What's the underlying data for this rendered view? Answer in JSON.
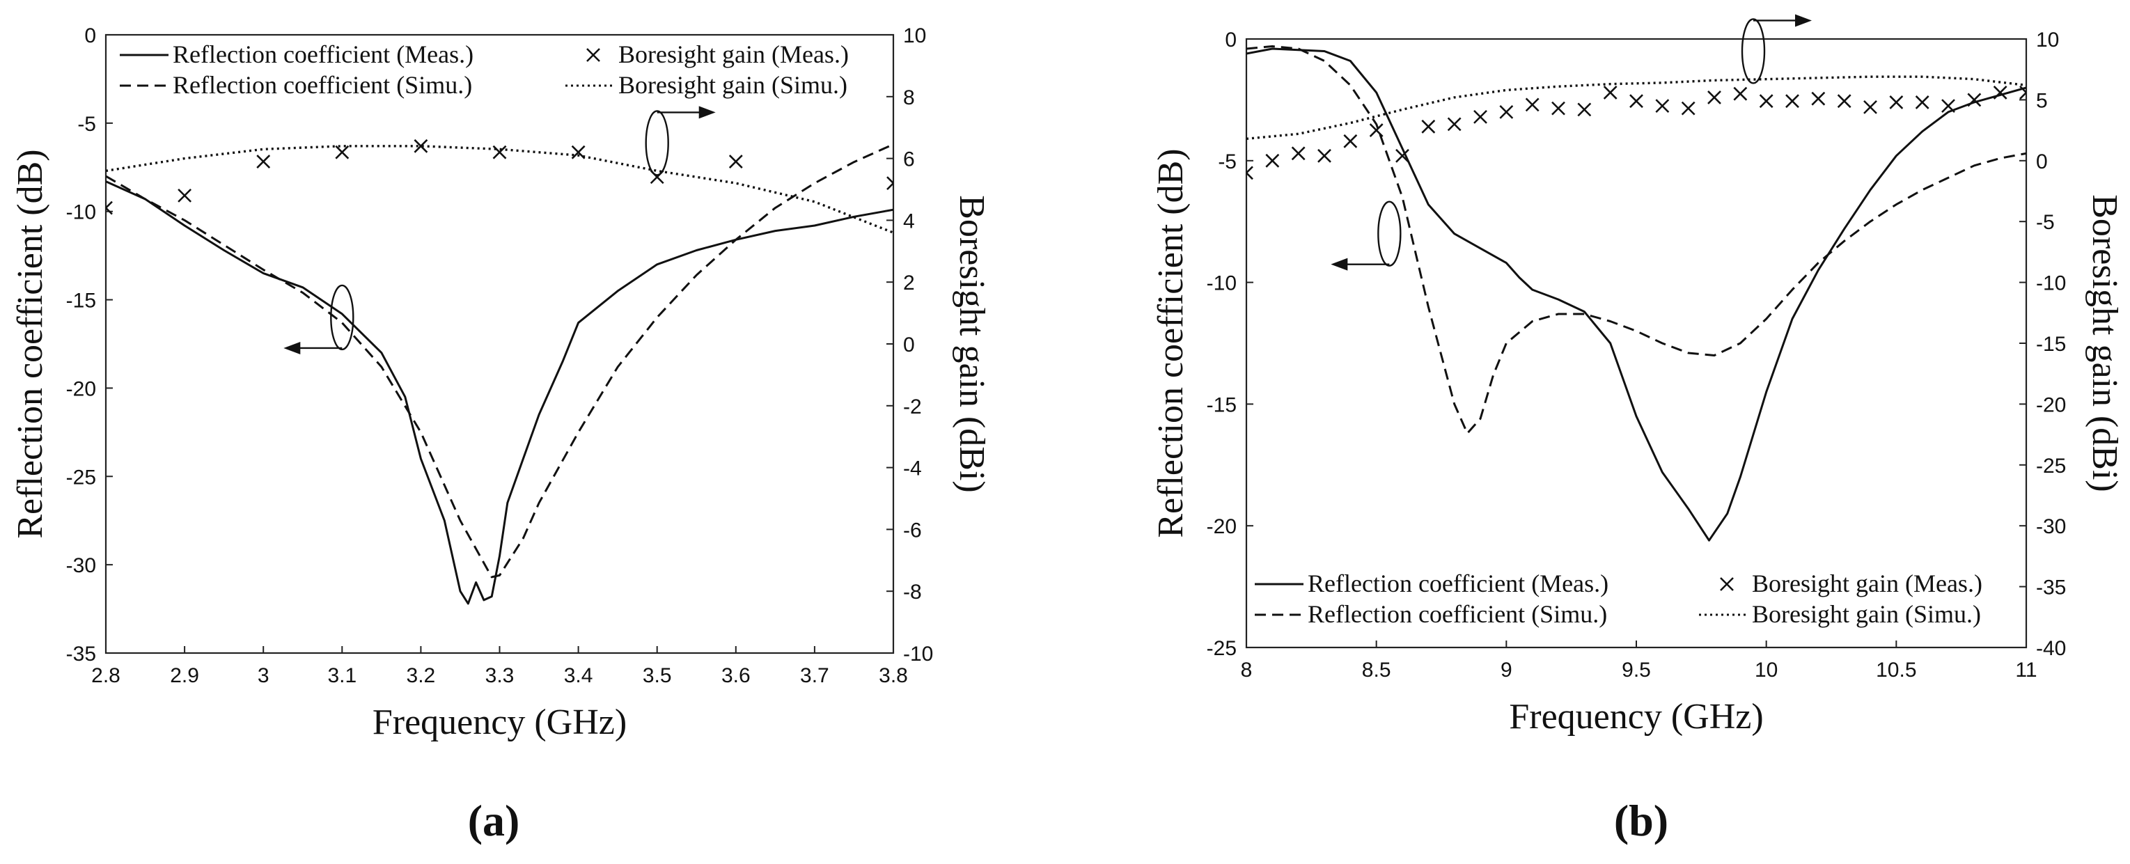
{
  "panel_labels": [
    "(a)",
    "(b)"
  ],
  "chart_data": [
    {
      "type": "line",
      "panel": "(a)",
      "xlabel": "Frequency (GHz)",
      "ylabel": "Reflection coefficient (dB)",
      "y2label": "Boresight gain (dBi)",
      "xlim": [
        2.8,
        3.8
      ],
      "ylim": [
        -35,
        0
      ],
      "y2lim": [
        -10,
        10
      ],
      "xticks": [
        "2.8",
        "2.9",
        "3",
        "3.1",
        "3.2",
        "3.3",
        "3.4",
        "3.5",
        "3.6",
        "3.7",
        "3.8"
      ],
      "yticks": [
        "0",
        "-5",
        "-10",
        "-15",
        "-20",
        "-25",
        "-30",
        "-35"
      ],
      "y2ticks": [
        "10",
        "8",
        "6",
        "4",
        "2",
        "0",
        "-2",
        "-4",
        "-6",
        "-8",
        "-10"
      ],
      "legend_position": "top",
      "series": [
        {
          "name": "Reflection coefficient (Meas.)",
          "axis": "left",
          "style": "solid",
          "points": [
            [
              2.8,
              -8.3
            ],
            [
              2.85,
              -9.3
            ],
            [
              2.9,
              -10.8
            ],
            [
              2.95,
              -12.2
            ],
            [
              3.0,
              -13.5
            ],
            [
              3.05,
              -14.3
            ],
            [
              3.1,
              -15.8
            ],
            [
              3.15,
              -18.0
            ],
            [
              3.18,
              -20.5
            ],
            [
              3.2,
              -24.0
            ],
            [
              3.23,
              -27.5
            ],
            [
              3.25,
              -31.5
            ],
            [
              3.26,
              -32.2
            ],
            [
              3.27,
              -31.0
            ],
            [
              3.28,
              -32.0
            ],
            [
              3.29,
              -31.8
            ],
            [
              3.3,
              -29.5
            ],
            [
              3.31,
              -26.5
            ],
            [
              3.33,
              -24.0
            ],
            [
              3.35,
              -21.5
            ],
            [
              3.38,
              -18.5
            ],
            [
              3.4,
              -16.3
            ],
            [
              3.45,
              -14.5
            ],
            [
              3.5,
              -13.0
            ],
            [
              3.55,
              -12.2
            ],
            [
              3.6,
              -11.6
            ],
            [
              3.65,
              -11.1
            ],
            [
              3.7,
              -10.8
            ],
            [
              3.75,
              -10.3
            ],
            [
              3.8,
              -9.9
            ]
          ]
        },
        {
          "name": "Reflection coefficient (Simu.)",
          "axis": "left",
          "style": "dashed",
          "points": [
            [
              2.8,
              -8.0
            ],
            [
              2.85,
              -9.3
            ],
            [
              2.9,
              -10.5
            ],
            [
              2.95,
              -11.9
            ],
            [
              3.0,
              -13.3
            ],
            [
              3.05,
              -14.6
            ],
            [
              3.1,
              -16.3
            ],
            [
              3.15,
              -18.8
            ],
            [
              3.2,
              -22.5
            ],
            [
              3.25,
              -27.5
            ],
            [
              3.29,
              -30.7
            ],
            [
              3.3,
              -30.6
            ],
            [
              3.33,
              -28.5
            ],
            [
              3.35,
              -26.5
            ],
            [
              3.4,
              -22.5
            ],
            [
              3.45,
              -18.8
            ],
            [
              3.5,
              -16.0
            ],
            [
              3.55,
              -13.6
            ],
            [
              3.6,
              -11.6
            ],
            [
              3.65,
              -9.8
            ],
            [
              3.7,
              -8.4
            ],
            [
              3.75,
              -7.2
            ],
            [
              3.8,
              -6.2
            ]
          ]
        },
        {
          "name": "Boresight gain (Meas.)",
          "axis": "right",
          "style": "markers-x",
          "points": [
            [
              2.8,
              4.4
            ],
            [
              2.9,
              4.8
            ],
            [
              3.0,
              5.9
            ],
            [
              3.1,
              6.2
            ],
            [
              3.2,
              6.4
            ],
            [
              3.3,
              6.2
            ],
            [
              3.4,
              6.2
            ],
            [
              3.5,
              5.4
            ],
            [
              3.6,
              5.9
            ],
            [
              3.8,
              5.2
            ]
          ]
        },
        {
          "name": "Boresight gain (Simu.)",
          "axis": "right",
          "style": "dotted",
          "points": [
            [
              2.8,
              5.6
            ],
            [
              2.9,
              6.0
            ],
            [
              3.0,
              6.3
            ],
            [
              3.1,
              6.4
            ],
            [
              3.2,
              6.4
            ],
            [
              3.3,
              6.3
            ],
            [
              3.4,
              6.1
            ],
            [
              3.5,
              5.6
            ],
            [
              3.6,
              5.2
            ],
            [
              3.7,
              4.6
            ],
            [
              3.8,
              3.6
            ]
          ]
        }
      ],
      "annotations": [
        {
          "text": "left-arrow",
          "points_to": "Reflection coefficient",
          "at": [
            3.1,
            -16
          ]
        },
        {
          "text": "right-arrow",
          "points_to": "Boresight gain",
          "at": [
            3.5,
            6.5
          ]
        }
      ]
    },
    {
      "type": "line",
      "panel": "(b)",
      "xlabel": "Frequency (GHz)",
      "ylabel": "Reflection coefficient (dB)",
      "y2label": "Boresight gain (dBi)",
      "xlim": [
        8,
        11
      ],
      "ylim": [
        -25,
        0
      ],
      "y2lim": [
        -40,
        10
      ],
      "xticks": [
        "8",
        "8.5",
        "9",
        "9.5",
        "10",
        "10.5",
        "11"
      ],
      "yticks": [
        "0",
        "-5",
        "-10",
        "-15",
        "-20",
        "-25"
      ],
      "y2ticks": [
        "10",
        "5",
        "0",
        "-5",
        "-10",
        "-15",
        "-20",
        "-25",
        "-30",
        "-35",
        "-40"
      ],
      "legend_position": "bottom",
      "series": [
        {
          "name": "Reflection coefficient (Meas.)",
          "axis": "left",
          "style": "solid",
          "points": [
            [
              8.0,
              -0.6
            ],
            [
              8.1,
              -0.4
            ],
            [
              8.2,
              -0.45
            ],
            [
              8.3,
              -0.5
            ],
            [
              8.4,
              -0.9
            ],
            [
              8.5,
              -2.2
            ],
            [
              8.6,
              -4.5
            ],
            [
              8.7,
              -6.8
            ],
            [
              8.8,
              -8.0
            ],
            [
              8.9,
              -8.6
            ],
            [
              9.0,
              -9.2
            ],
            [
              9.05,
              -9.8
            ],
            [
              9.1,
              -10.3
            ],
            [
              9.2,
              -10.7
            ],
            [
              9.3,
              -11.2
            ],
            [
              9.4,
              -12.5
            ],
            [
              9.5,
              -15.5
            ],
            [
              9.6,
              -17.8
            ],
            [
              9.7,
              -19.3
            ],
            [
              9.78,
              -20.6
            ],
            [
              9.85,
              -19.5
            ],
            [
              9.9,
              -18.0
            ],
            [
              10.0,
              -14.5
            ],
            [
              10.1,
              -11.5
            ],
            [
              10.2,
              -9.5
            ],
            [
              10.3,
              -7.8
            ],
            [
              10.4,
              -6.2
            ],
            [
              10.5,
              -4.8
            ],
            [
              10.6,
              -3.8
            ],
            [
              10.7,
              -3.0
            ],
            [
              10.8,
              -2.6
            ],
            [
              10.9,
              -2.3
            ],
            [
              11.0,
              -2.0
            ]
          ]
        },
        {
          "name": "Reflection coefficient (Simu.)",
          "axis": "left",
          "style": "dashed",
          "points": [
            [
              8.0,
              -0.4
            ],
            [
              8.1,
              -0.3
            ],
            [
              8.2,
              -0.4
            ],
            [
              8.3,
              -0.9
            ],
            [
              8.4,
              -1.9
            ],
            [
              8.5,
              -3.5
            ],
            [
              8.6,
              -6.5
            ],
            [
              8.7,
              -11.0
            ],
            [
              8.8,
              -15.0
            ],
            [
              8.85,
              -16.2
            ],
            [
              8.9,
              -15.6
            ],
            [
              8.95,
              -13.8
            ],
            [
              9.0,
              -12.5
            ],
            [
              9.1,
              -11.6
            ],
            [
              9.2,
              -11.3
            ],
            [
              9.3,
              -11.3
            ],
            [
              9.4,
              -11.6
            ],
            [
              9.5,
              -12.0
            ],
            [
              9.6,
              -12.5
            ],
            [
              9.7,
              -12.9
            ],
            [
              9.8,
              -13.0
            ],
            [
              9.9,
              -12.5
            ],
            [
              10.0,
              -11.5
            ],
            [
              10.1,
              -10.3
            ],
            [
              10.2,
              -9.2
            ],
            [
              10.3,
              -8.3
            ],
            [
              10.4,
              -7.5
            ],
            [
              10.5,
              -6.8
            ],
            [
              10.6,
              -6.2
            ],
            [
              10.7,
              -5.7
            ],
            [
              10.8,
              -5.2
            ],
            [
              10.9,
              -4.9
            ],
            [
              11.0,
              -4.7
            ]
          ]
        },
        {
          "name": "Boresight gain (Meas.)",
          "axis": "right",
          "style": "markers-x",
          "points": [
            [
              8.0,
              -1.0
            ],
            [
              8.1,
              0.0
            ],
            [
              8.2,
              0.6
            ],
            [
              8.3,
              0.4
            ],
            [
              8.4,
              1.6
            ],
            [
              8.5,
              2.5
            ],
            [
              8.6,
              0.4
            ],
            [
              8.7,
              2.8
            ],
            [
              8.8,
              3.0
            ],
            [
              8.9,
              3.6
            ],
            [
              9.0,
              4.0
            ],
            [
              9.1,
              4.6
            ],
            [
              9.2,
              4.3
            ],
            [
              9.3,
              4.2
            ],
            [
              9.4,
              5.6
            ],
            [
              9.5,
              4.9
            ],
            [
              9.6,
              4.5
            ],
            [
              9.7,
              4.3
            ],
            [
              9.8,
              5.2
            ],
            [
              9.9,
              5.5
            ],
            [
              10.0,
              4.9
            ],
            [
              10.1,
              4.9
            ],
            [
              10.2,
              5.1
            ],
            [
              10.3,
              4.9
            ],
            [
              10.4,
              4.4
            ],
            [
              10.5,
              4.8
            ],
            [
              10.6,
              4.8
            ],
            [
              10.7,
              4.5
            ],
            [
              10.8,
              5.0
            ],
            [
              10.9,
              5.6
            ],
            [
              11.0,
              5.6
            ]
          ]
        },
        {
          "name": "Boresight gain (Simu.)",
          "axis": "right",
          "style": "dotted",
          "points": [
            [
              8.0,
              1.8
            ],
            [
              8.2,
              2.2
            ],
            [
              8.4,
              3.1
            ],
            [
              8.6,
              4.2
            ],
            [
              8.8,
              5.2
            ],
            [
              9.0,
              5.8
            ],
            [
              9.2,
              6.1
            ],
            [
              9.4,
              6.3
            ],
            [
              9.6,
              6.4
            ],
            [
              9.8,
              6.6
            ],
            [
              10.0,
              6.7
            ],
            [
              10.2,
              6.8
            ],
            [
              10.4,
              6.9
            ],
            [
              10.6,
              6.9
            ],
            [
              10.8,
              6.7
            ],
            [
              11.0,
              6.2
            ]
          ]
        }
      ],
      "annotations": [
        {
          "text": "left-arrow",
          "points_to": "Reflection coefficient",
          "at": [
            8.55,
            -8
          ]
        },
        {
          "text": "right-arrow",
          "points_to": "Boresight gain",
          "at": [
            9.95,
            9
          ]
        }
      ]
    }
  ]
}
